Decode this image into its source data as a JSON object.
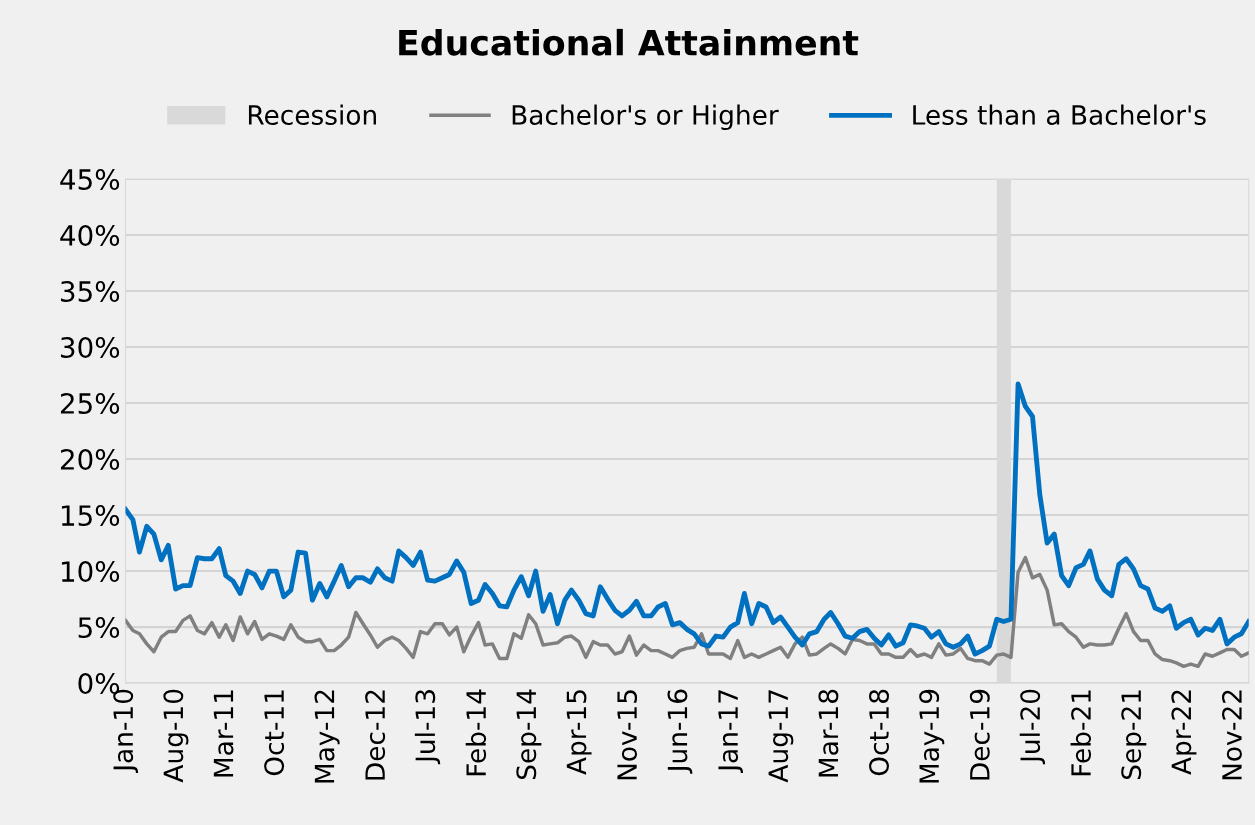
{
  "chart_data": {
    "type": "line",
    "title": "Educational Attainment",
    "x": [
      "2010-01",
      "2010-02",
      "2010-03",
      "2010-04",
      "2010-05",
      "2010-06",
      "2010-07",
      "2010-08",
      "2010-09",
      "2010-10",
      "2010-11",
      "2010-12",
      "2011-01",
      "2011-02",
      "2011-03",
      "2011-04",
      "2011-05",
      "2011-06",
      "2011-07",
      "2011-08",
      "2011-09",
      "2011-10",
      "2011-11",
      "2011-12",
      "2012-01",
      "2012-02",
      "2012-03",
      "2012-04",
      "2012-05",
      "2012-06",
      "2012-07",
      "2012-08",
      "2012-09",
      "2012-10",
      "2012-11",
      "2012-12",
      "2013-01",
      "2013-02",
      "2013-03",
      "2013-04",
      "2013-05",
      "2013-06",
      "2013-07",
      "2013-08",
      "2013-09",
      "2013-10",
      "2013-11",
      "2013-12",
      "2014-01",
      "2014-02",
      "2014-03",
      "2014-04",
      "2014-05",
      "2014-06",
      "2014-07",
      "2014-08",
      "2014-09",
      "2014-10",
      "2014-11",
      "2014-12",
      "2015-01",
      "2015-02",
      "2015-03",
      "2015-04",
      "2015-05",
      "2015-06",
      "2015-07",
      "2015-08",
      "2015-09",
      "2015-10",
      "2015-11",
      "2015-12",
      "2016-01",
      "2016-02",
      "2016-03",
      "2016-04",
      "2016-05",
      "2016-06",
      "2016-07",
      "2016-08",
      "2016-09",
      "2016-10",
      "2016-11",
      "2016-12",
      "2017-01",
      "2017-02",
      "2017-03",
      "2017-04",
      "2017-05",
      "2017-06",
      "2017-07",
      "2017-08",
      "2017-09",
      "2017-10",
      "2017-11",
      "2017-12",
      "2018-01",
      "2018-02",
      "2018-03",
      "2018-04",
      "2018-05",
      "2018-06",
      "2018-07",
      "2018-08",
      "2018-09",
      "2018-10",
      "2018-11",
      "2018-12",
      "2019-01",
      "2019-02",
      "2019-03",
      "2019-04",
      "2019-05",
      "2019-06",
      "2019-07",
      "2019-08",
      "2019-09",
      "2019-10",
      "2019-11",
      "2019-12",
      "2020-01",
      "2020-02",
      "2020-03",
      "2020-04",
      "2020-05",
      "2020-06",
      "2020-07",
      "2020-08",
      "2020-09",
      "2020-10",
      "2020-11",
      "2020-12",
      "2021-01",
      "2021-02",
      "2021-03",
      "2021-04",
      "2021-05",
      "2021-06",
      "2021-07",
      "2021-08",
      "2021-09",
      "2021-10",
      "2021-11",
      "2021-12",
      "2022-01",
      "2022-02",
      "2022-03",
      "2022-04",
      "2022-05",
      "2022-06",
      "2022-07",
      "2022-08",
      "2022-09",
      "2022-10",
      "2022-11",
      "2022-12",
      "2023-01"
    ],
    "series": [
      {
        "name": "Bachelor's or Higher",
        "color": "#808080",
        "values": [
          5.6,
          4.7,
          4.4,
          3.5,
          2.8,
          4.1,
          4.6,
          4.6,
          5.6,
          6.0,
          4.7,
          4.4,
          5.4,
          4.1,
          5.2,
          3.8,
          5.9,
          4.4,
          5.5,
          3.9,
          4.4,
          4.2,
          3.9,
          5.2,
          4.1,
          3.7,
          3.7,
          3.9,
          2.9,
          2.9,
          3.4,
          4.1,
          6.3,
          5.3,
          4.3,
          3.2,
          3.8,
          4.1,
          3.8,
          3.1,
          2.3,
          4.6,
          4.4,
          5.3,
          5.3,
          4.3,
          5.0,
          2.8,
          4.2,
          5.4,
          3.4,
          3.5,
          2.2,
          2.2,
          4.4,
          4.0,
          6.1,
          5.3,
          3.4,
          3.5,
          3.6,
          4.1,
          4.2,
          3.7,
          2.3,
          3.7,
          3.4,
          3.4,
          2.6,
          2.8,
          4.2,
          2.5,
          3.4,
          2.9,
          2.9,
          2.6,
          2.3,
          2.9,
          3.1,
          3.2,
          4.4,
          2.6,
          2.6,
          2.6,
          2.2,
          3.8,
          2.3,
          2.6,
          2.3,
          2.6,
          2.9,
          3.2,
          2.3,
          3.5,
          4.1,
          2.5,
          2.6,
          3.1,
          3.5,
          3.1,
          2.6,
          3.9,
          3.8,
          3.5,
          3.5,
          2.6,
          2.6,
          2.3,
          2.3,
          3.0,
          2.4,
          2.6,
          2.3,
          3.5,
          2.5,
          2.6,
          3.1,
          2.2,
          2.0,
          2.0,
          1.7,
          2.5,
          2.6,
          2.3,
          9.9,
          11.2,
          9.4,
          9.7,
          8.3,
          5.2,
          5.3,
          4.6,
          4.1,
          3.2,
          3.5,
          3.4,
          3.4,
          3.5,
          4.9,
          6.2,
          4.6,
          3.8,
          3.8,
          2.6,
          2.1,
          2.0,
          1.8,
          1.5,
          1.7,
          1.5,
          2.6,
          2.4,
          2.7,
          3.0,
          3.0,
          2.4,
          2.7
        ]
      },
      {
        "name": "Less than a Bachelor's",
        "color": "#0070c0",
        "values": [
          15.5,
          14.6,
          11.7,
          14.0,
          13.3,
          11.0,
          12.3,
          8.4,
          8.7,
          8.7,
          11.2,
          11.1,
          11.1,
          12.0,
          9.6,
          9.1,
          8.0,
          10.0,
          9.7,
          8.5,
          10.0,
          10.0,
          7.7,
          8.3,
          11.7,
          11.6,
          7.4,
          8.9,
          7.7,
          9.1,
          10.5,
          8.6,
          9.4,
          9.4,
          9.0,
          10.2,
          9.4,
          9.1,
          11.8,
          11.2,
          10.5,
          11.7,
          9.2,
          9.1,
          9.4,
          9.7,
          10.9,
          9.9,
          7.1,
          7.4,
          8.8,
          8.0,
          6.9,
          6.8,
          8.3,
          9.5,
          7.8,
          10.0,
          6.4,
          7.9,
          5.3,
          7.4,
          8.3,
          7.4,
          6.2,
          6.0,
          8.6,
          7.5,
          6.5,
          6.0,
          6.5,
          7.3,
          6.0,
          6.0,
          6.8,
          7.1,
          5.2,
          5.4,
          4.8,
          4.4,
          3.5,
          3.3,
          4.2,
          4.1,
          5.0,
          5.4,
          8.0,
          5.3,
          7.1,
          6.8,
          5.4,
          5.9,
          5.0,
          4.1,
          3.4,
          4.4,
          4.6,
          5.7,
          6.3,
          5.3,
          4.2,
          4.0,
          4.6,
          4.8,
          4.0,
          3.4,
          4.3,
          3.3,
          3.6,
          5.2,
          5.1,
          4.9,
          4.1,
          4.6,
          3.5,
          3.2,
          3.5,
          4.2,
          2.6,
          2.9,
          3.3,
          5.7,
          5.5,
          5.7,
          26.7,
          24.7,
          23.8,
          16.8,
          12.5,
          13.3,
          9.6,
          8.7,
          10.3,
          10.6,
          11.8,
          9.3,
          8.3,
          7.8,
          10.6,
          11.1,
          10.2,
          8.7,
          8.4,
          6.7,
          6.4,
          6.9,
          4.9,
          5.4,
          5.7,
          4.3,
          4.9,
          4.7,
          5.7,
          3.5,
          4.1,
          4.4,
          5.5
        ]
      }
    ],
    "bands": [
      {
        "axis": "x",
        "from": "2020-02",
        "to": "2020-04",
        "label": "Recession",
        "color": "#d9d9d9"
      }
    ],
    "xlim": [
      "2010-01",
      "2023-01"
    ],
    "xticks": [
      {
        "value": "2010-01",
        "label": "Jan-10"
      },
      {
        "value": "2010-08",
        "label": "Aug-10"
      },
      {
        "value": "2011-03",
        "label": "Mar-11"
      },
      {
        "value": "2011-10",
        "label": "Oct-11"
      },
      {
        "value": "2012-05",
        "label": "May-12"
      },
      {
        "value": "2012-12",
        "label": "Dec-12"
      },
      {
        "value": "2013-07",
        "label": "Jul-13"
      },
      {
        "value": "2014-02",
        "label": "Feb-14"
      },
      {
        "value": "2014-09",
        "label": "Sep-14"
      },
      {
        "value": "2015-04",
        "label": "Apr-15"
      },
      {
        "value": "2015-11",
        "label": "Nov-15"
      },
      {
        "value": "2016-06",
        "label": "Jun-16"
      },
      {
        "value": "2017-01",
        "label": "Jan-17"
      },
      {
        "value": "2017-08",
        "label": "Aug-17"
      },
      {
        "value": "2018-03",
        "label": "Mar-18"
      },
      {
        "value": "2018-10",
        "label": "Oct-18"
      },
      {
        "value": "2019-05",
        "label": "May-19"
      },
      {
        "value": "2019-12",
        "label": "Dec-19"
      },
      {
        "value": "2020-07",
        "label": "Jul-20"
      },
      {
        "value": "2021-02",
        "label": "Feb-21"
      },
      {
        "value": "2021-09",
        "label": "Sep-21"
      },
      {
        "value": "2022-04",
        "label": "Apr-22"
      },
      {
        "value": "2022-11",
        "label": "Nov-22"
      }
    ],
    "ylim": [
      0,
      45
    ],
    "yticks": [
      {
        "value": 0,
        "label": "0%"
      },
      {
        "value": 5,
        "label": "5%"
      },
      {
        "value": 10,
        "label": "10%"
      },
      {
        "value": 15,
        "label": "15%"
      },
      {
        "value": 20,
        "label": "20%"
      },
      {
        "value": 25,
        "label": "25%"
      },
      {
        "value": 30,
        "label": "30%"
      },
      {
        "value": 35,
        "label": "35%"
      },
      {
        "value": 40,
        "label": "40%"
      },
      {
        "value": 45,
        "label": "45%"
      }
    ],
    "grid": "y",
    "legend": "top",
    "marker": "none",
    "line_style": "solid"
  }
}
